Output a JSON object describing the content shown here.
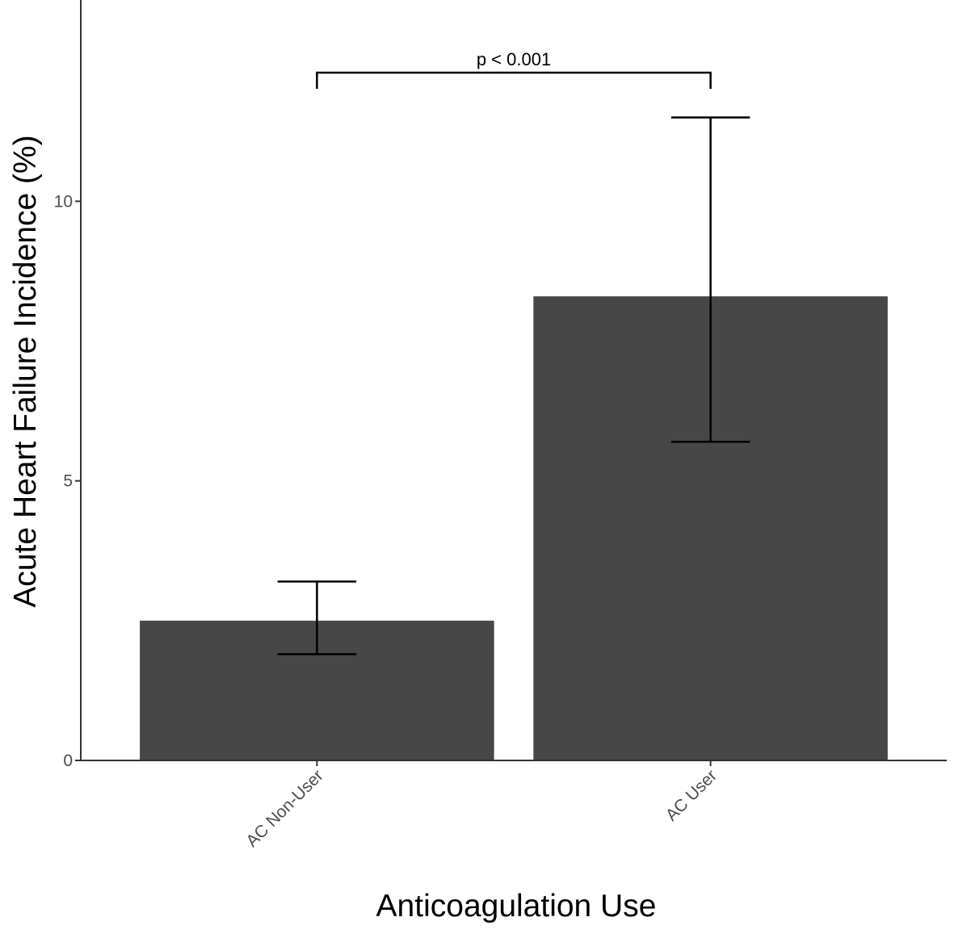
{
  "chart_data": {
    "type": "bar",
    "title": "",
    "xlabel": "Anticoagulation Use",
    "ylabel": "Acute Heart Failure Incidence (%)",
    "categories": [
      "AC Non-User",
      "AC User"
    ],
    "values": [
      2.5,
      8.3
    ],
    "error_bars": [
      {
        "low": 1.9,
        "high": 3.2
      },
      {
        "low": 5.7,
        "high": 11.5
      }
    ],
    "ylim": [
      0,
      13.6
    ],
    "yticks": [
      0,
      5,
      10
    ],
    "ytick_labels": [
      "0",
      "5",
      "10"
    ],
    "grid": false,
    "legend": "none",
    "annotation": {
      "text": "p < 0.001",
      "from_category": "AC Non-User",
      "to_category": "AC User",
      "y": 12.3
    },
    "colors": {
      "bar": "#474747",
      "axis": "#333333",
      "error": "#000000"
    }
  }
}
